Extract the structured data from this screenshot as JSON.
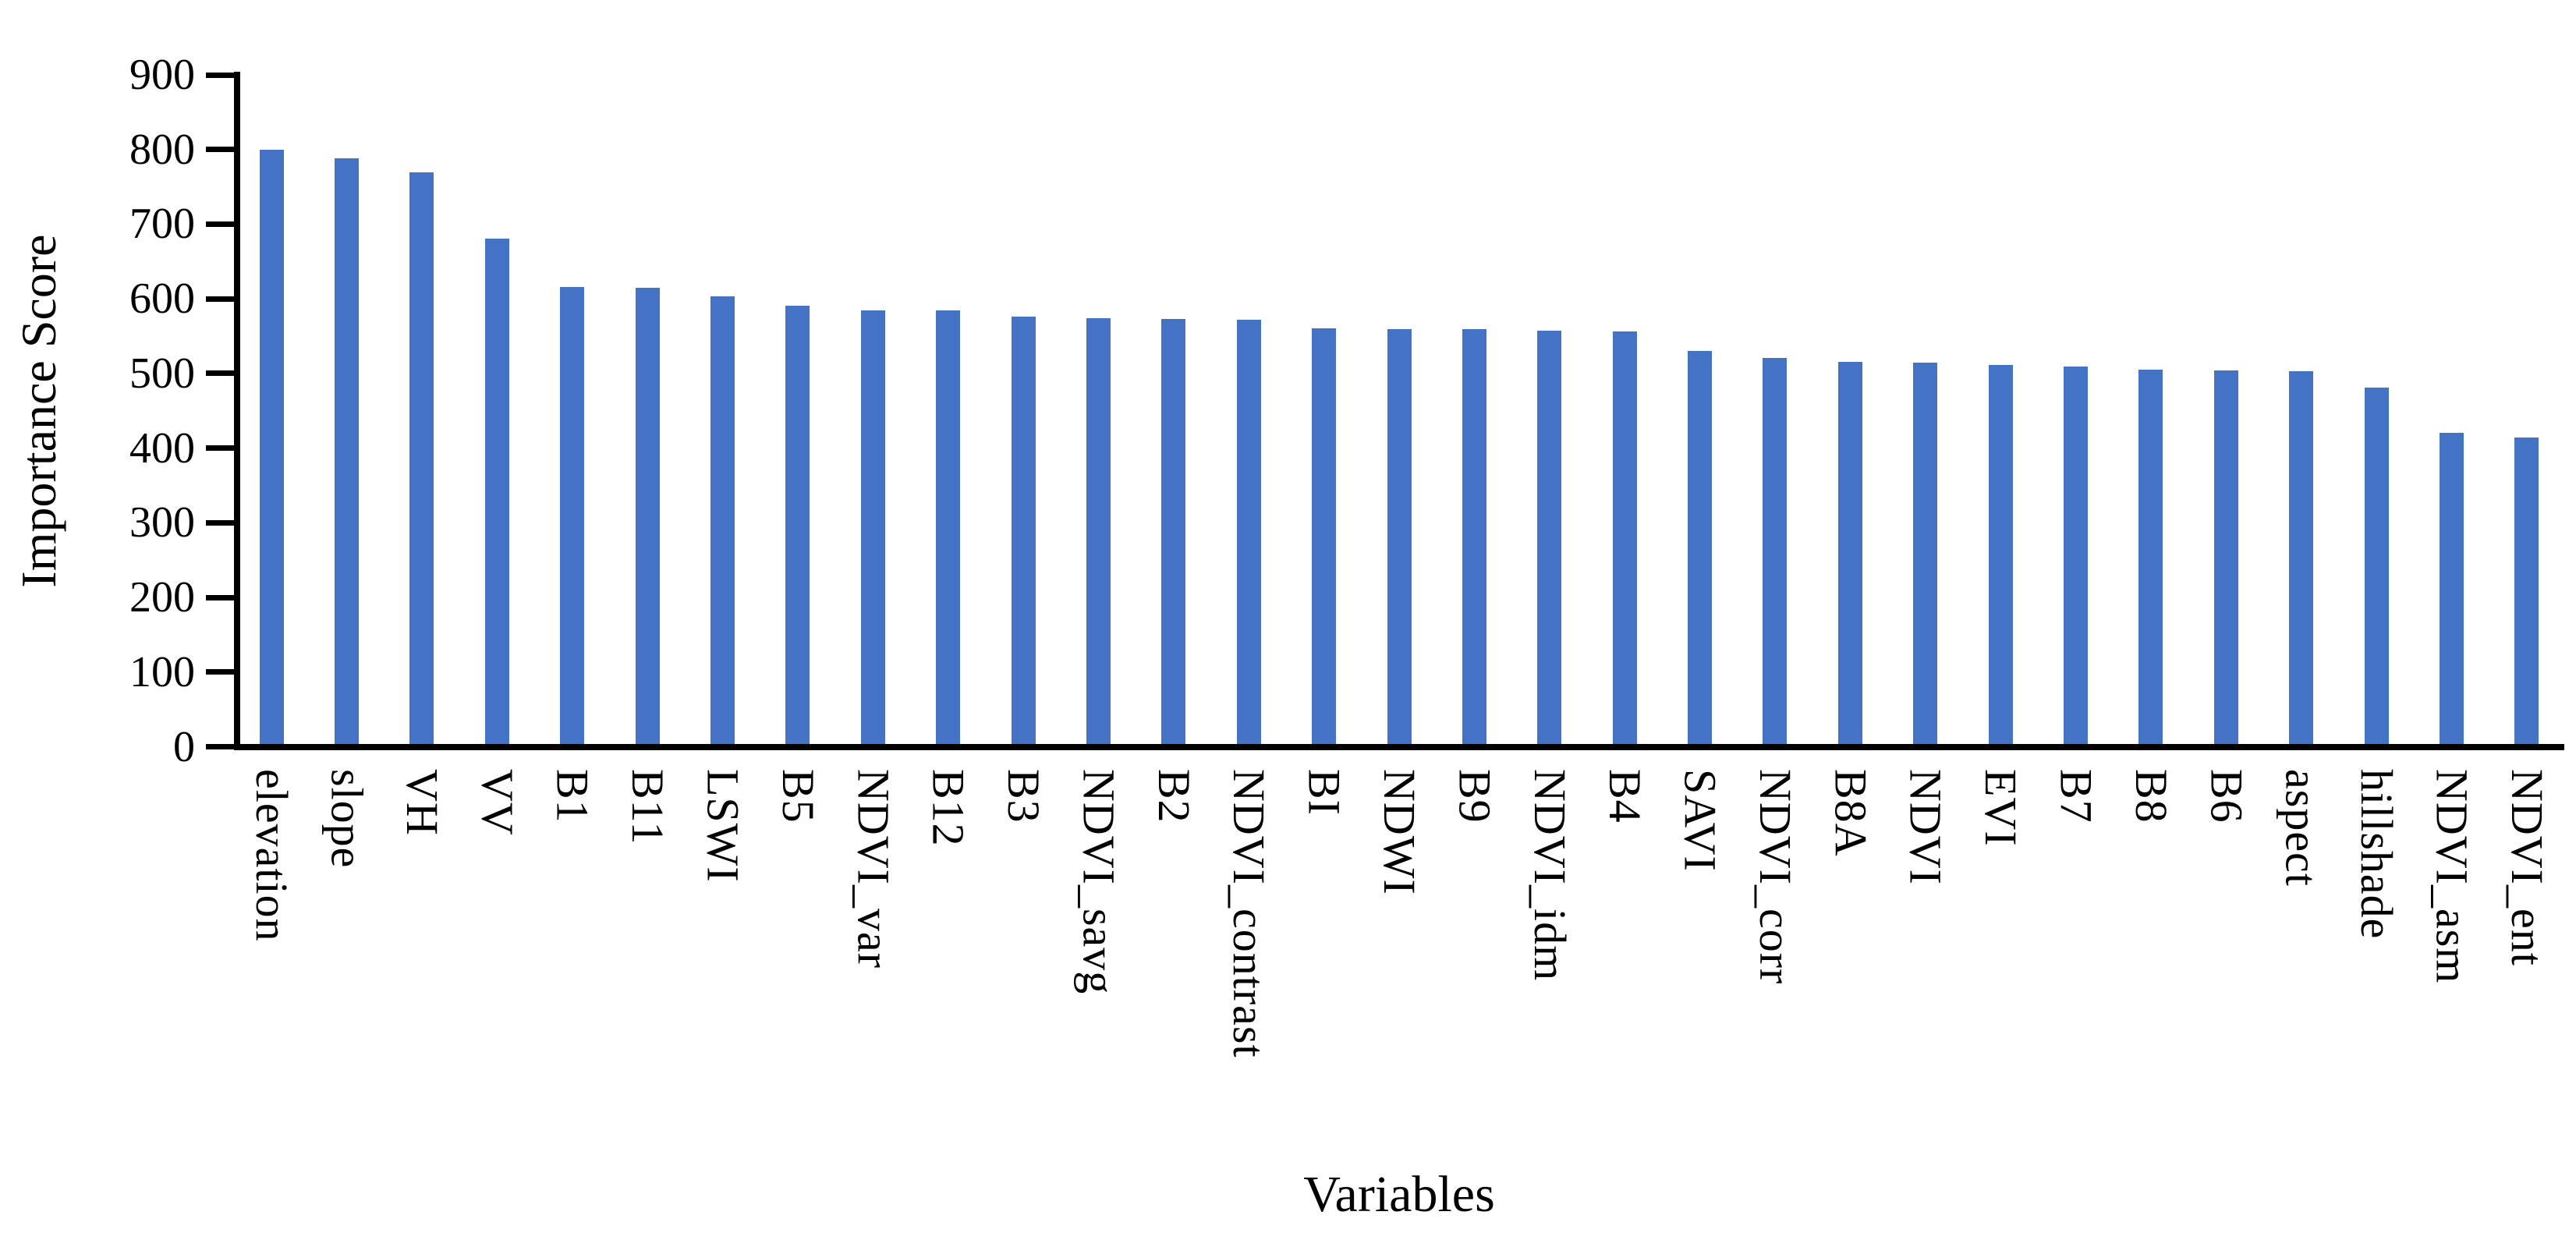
{
  "figure": {
    "background": "#ffffff",
    "text_color": "#000000"
  },
  "chart_data": {
    "type": "bar",
    "title": "",
    "xlabel": "Variables",
    "ylabel": "Importance Score",
    "categories": [
      "elevation",
      "slope",
      "VH",
      "VV",
      "B1",
      "B11",
      "LSWI",
      "B5",
      "NDVI_var",
      "B12",
      "B3",
      "NDVI_savg",
      "B2",
      "NDVI_contrast",
      "BI",
      "NDWI",
      "B9",
      "NDVI_idm",
      "B4",
      "SAVI",
      "NDVI_corr",
      "B8A",
      "NDVI",
      "EVI",
      "B7",
      "B8",
      "B6",
      "aspect",
      "hillshade",
      "NDVI_asm",
      "NDVI_ent"
    ],
    "values": [
      800,
      788,
      769,
      681,
      616,
      615,
      603,
      591,
      585,
      584,
      576,
      574,
      573,
      572,
      560,
      559,
      559,
      557,
      556,
      530,
      521,
      516,
      515,
      511,
      509,
      505,
      504,
      503,
      481,
      420,
      414
    ],
    "ylim": [
      0,
      900
    ],
    "yticks": [
      0,
      100,
      200,
      300,
      400,
      500,
      600,
      700,
      800,
      900
    ],
    "bar_color": "#4472C4",
    "axis_color": "#000000",
    "grid": "off",
    "legend": "none"
  }
}
